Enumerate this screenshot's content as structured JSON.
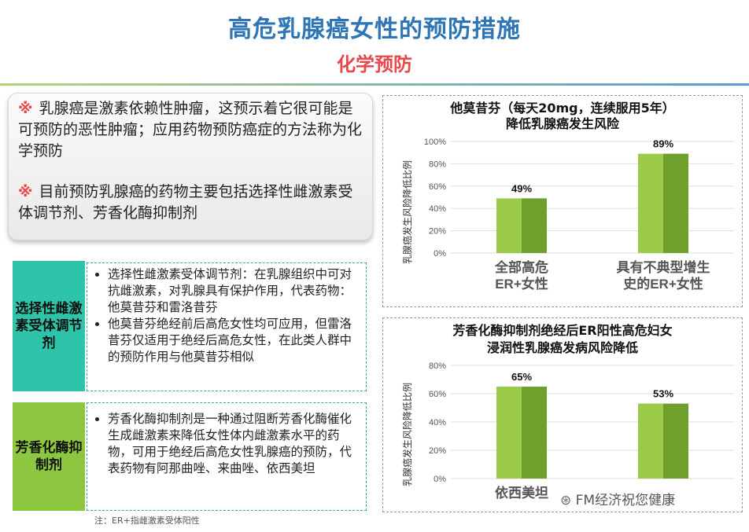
{
  "page": {
    "title": "高危乳腺癌女性的预防措施",
    "subtitle": "化学预防"
  },
  "intro": {
    "items": [
      {
        "mark": "※",
        "text": "乳腺癌是激素依赖性肿瘤，这预示着它很可能是可预防的恶性肿瘤；应用药物预防癌症的方法称为化学预防"
      },
      {
        "mark": "※",
        "text": "目前预防乳腺癌的药物主要包括选择性雌激素受体调节剂、芳香化酶抑制剂"
      }
    ]
  },
  "categories": [
    {
      "label": "选择性雌激素受体调节剂",
      "color": "#2ec4a9",
      "bullets": [
        "选择性雌激素受体调节剂：在乳腺组织中可对抗雌激素，对乳腺具有保护作用，代表药物：他莫昔芬和雷洛昔芬",
        "他莫昔芬绝经前后高危女性均可应用，但雷洛昔芬仅适用于绝经后高危女性，在此类人群中的预防作用与他莫昔芬相似"
      ]
    },
    {
      "label": "芳香化酶抑制剂",
      "color": "#8dc63f",
      "bullets": [
        "芳香化酶抑制剂是一种通过阻断芳香化酶催化生成雌激素来降低女性体内雌激素水平的药物，可用于绝经后高危女性乳腺癌的预防，代表药物有阿那曲唑、来曲唑、依西美坦"
      ]
    }
  ],
  "note": "注：ER+指雌激素受体阳性",
  "watermark": "FM经济祝您健康",
  "colors": {
    "title": "#2e75b6",
    "accent": "#e8474a",
    "bar_light": "#9ccb4a",
    "bar_dark": "#6f9f2c"
  },
  "chart_data": [
    {
      "type": "bar",
      "title": "他莫昔芬（每天20mg，连续服用5年）",
      "subtitle": "降低乳腺癌发生风险",
      "ylabel": "乳腺癌发生风险降低比例",
      "ylim": [
        0,
        100
      ],
      "yticks": [
        "0%",
        "20%",
        "40%",
        "60%",
        "80%",
        "100%"
      ],
      "categories": [
        "全部高危ER+女性",
        "具有不典型增生史的ER+女性"
      ],
      "values": [
        49,
        89
      ],
      "data_labels": [
        "49%",
        "89%"
      ],
      "grid": true
    },
    {
      "type": "bar",
      "title": "芳香化酶抑制剂绝经后ER阳性高危妇女",
      "subtitle": "浸润性乳腺癌发病风险降低",
      "ylabel": "乳腺癌发生风险降低比例",
      "ylim": [
        0,
        80
      ],
      "yticks": [
        "0%",
        "20%",
        "40%",
        "60%",
        "80%"
      ],
      "categories": [
        "依西美坦",
        ""
      ],
      "values": [
        65,
        53
      ],
      "data_labels": [
        "65%",
        "53%"
      ],
      "grid": true
    }
  ]
}
